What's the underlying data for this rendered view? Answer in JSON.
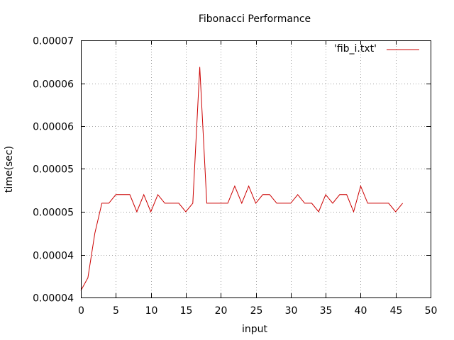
{
  "chart_data": {
    "type": "line",
    "title": "Fibonacci Performance",
    "xlabel": "input",
    "ylabel": "time(sec)",
    "xlim": [
      0,
      50
    ],
    "ylim": [
      4e-05,
      7e-05
    ],
    "xticks": [
      0,
      5,
      10,
      15,
      20,
      25,
      30,
      35,
      40,
      45,
      50
    ],
    "xtick_labels": [
      "0",
      "5",
      "10",
      "15",
      "20",
      "25",
      "30",
      "35",
      "40",
      "45",
      "50"
    ],
    "yticks": [
      4e-05,
      4.5e-05,
      5e-05,
      5.5e-05,
      6e-05,
      6.5e-05,
      7e-05
    ],
    "ytick_labels": [
      "0.00004",
      "0.00004",
      "0.00005",
      "0.00005",
      "0.00006",
      "0.00006",
      "0.00007"
    ],
    "grid": true,
    "legend_position": "top-right",
    "colors": {
      "series": "#cc0000",
      "grid": "#a0a0a0"
    },
    "series": [
      {
        "name": "'fib_i.txt'",
        "x": [
          0,
          1,
          2,
          3,
          4,
          5,
          6,
          7,
          8,
          9,
          10,
          11,
          12,
          13,
          14,
          15,
          16,
          17,
          18,
          19,
          20,
          21,
          22,
          23,
          24,
          25,
          26,
          27,
          28,
          29,
          30,
          31,
          32,
          33,
          34,
          35,
          36,
          37,
          38,
          39,
          40,
          41,
          42,
          43,
          44,
          45,
          46
        ],
        "y": [
          4.08e-05,
          4.23e-05,
          4.75e-05,
          5.1e-05,
          5.1e-05,
          5.2e-05,
          5.2e-05,
          5.2e-05,
          5e-05,
          5.2e-05,
          5e-05,
          5.2e-05,
          5.1e-05,
          5.1e-05,
          5.1e-05,
          5e-05,
          5.1e-05,
          6.69e-05,
          5.1e-05,
          5.1e-05,
          5.1e-05,
          5.1e-05,
          5.3e-05,
          5.1e-05,
          5.3e-05,
          5.1e-05,
          5.2e-05,
          5.2e-05,
          5.1e-05,
          5.1e-05,
          5.1e-05,
          5.2e-05,
          5.1e-05,
          5.1e-05,
          5e-05,
          5.2e-05,
          5.1e-05,
          5.2e-05,
          5.2e-05,
          5e-05,
          5.3e-05,
          5.1e-05,
          5.1e-05,
          5.1e-05,
          5.1e-05,
          5e-05,
          5.1e-05
        ]
      }
    ]
  }
}
